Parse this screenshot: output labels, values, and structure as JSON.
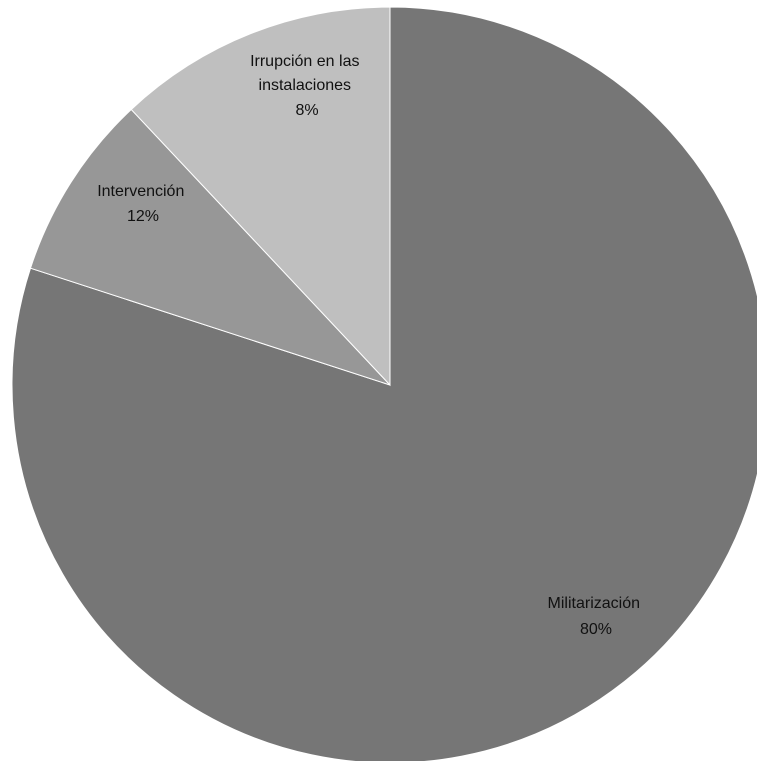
{
  "chart_data": {
    "type": "pie",
    "title": "",
    "slices": [
      {
        "label": "Militarización",
        "value": 80,
        "percent_label": "80%",
        "color": "#767676"
      },
      {
        "label_lines": [
          "Irrupción en las",
          "instalaciones"
        ],
        "value": 8,
        "percent_label": "8%",
        "color": "#979797"
      },
      {
        "label": "Intervención",
        "value": 12,
        "percent_label": "12%",
        "color": "#bfbfbf"
      }
    ],
    "start_angle_deg": 0,
    "direction": "clockwise",
    "legend": "none"
  }
}
